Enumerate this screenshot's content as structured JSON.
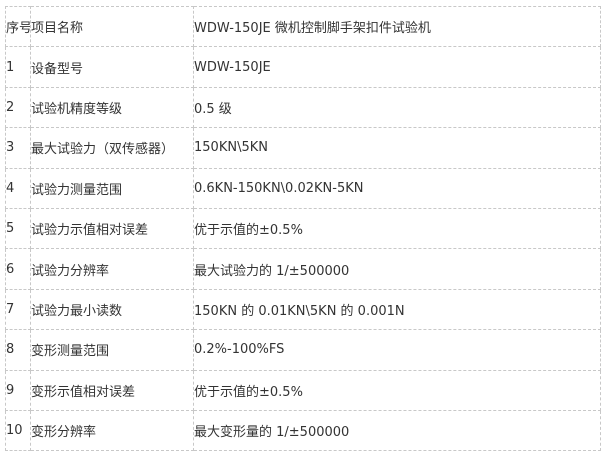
{
  "table": {
    "header": [
      "序号",
      "项目名称",
      "WDW-150JE 微机控制脚手架扣件试验机"
    ],
    "rows": [
      [
        "1",
        "设备型号",
        "WDW-150JE"
      ],
      [
        "2",
        "试验机精度等级",
        "0.5 级"
      ],
      [
        "3",
        "最大试验力（双传感器）",
        "150KN\\5KN"
      ],
      [
        "4",
        "试验力测量范围",
        "0.6KN-150KN\\0.02KN-5KN"
      ],
      [
        "5",
        "试验力示值相对误差",
        "优于示值的±0.5%"
      ],
      [
        "6",
        "试验力分辨率",
        "最大试验力的 1/±500000"
      ],
      [
        "7",
        "试验力最小读数",
        "150KN 的 0.01KN\\5KN 的 0.001N"
      ],
      [
        "8",
        "变形测量范围",
        "0.2%-100%FS"
      ],
      [
        "9",
        "变形示值相对误差",
        "优于示值的±0.5%"
      ],
      [
        "10",
        "变形分辨率",
        "最大变形量的 1/±500000"
      ]
    ]
  }
}
